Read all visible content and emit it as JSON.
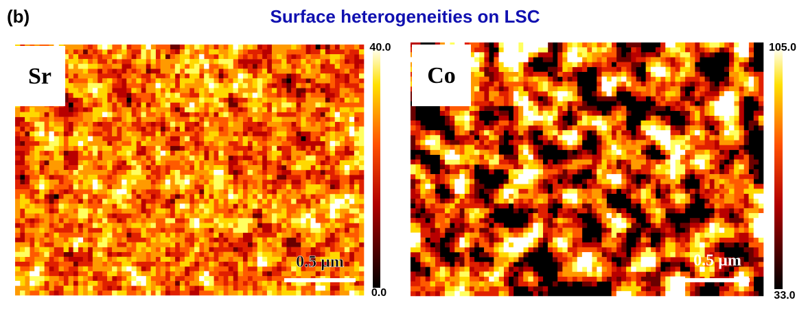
{
  "header": {
    "panel_label": "(b)",
    "title": "Surface heterogeneities on LSC"
  },
  "panels": [
    {
      "element": "Sr",
      "scale_bar": "0.5 µm",
      "colorbar_max": "40.0",
      "colorbar_min": "0.0"
    },
    {
      "element": "Co",
      "scale_bar": "0.5 µm",
      "colorbar_max": "105.0",
      "colorbar_min": "33.0"
    }
  ]
}
